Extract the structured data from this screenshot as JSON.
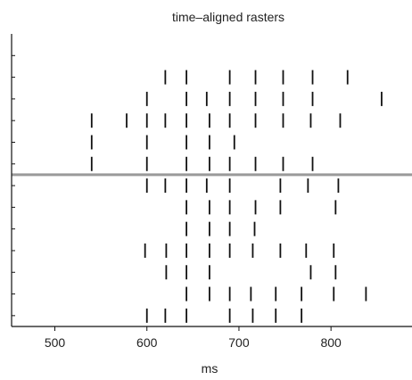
{
  "chart_data": {
    "type": "scatter",
    "subtype": "raster",
    "title": "time–aligned rasters",
    "xlabel": "ms",
    "ylabel": "",
    "xlim": [
      453,
      888
    ],
    "xticks": [
      500,
      600,
      700,
      800
    ],
    "ylim": [
      0.5,
      14
    ],
    "ytick_count": 13,
    "alignment_line_y": 7.5,
    "grid": false,
    "legend": "none",
    "colors": {
      "tick_mark": "#111111",
      "axis": "#111111",
      "alignment_line": "#9a9a9a"
    },
    "trials": [
      [
        600,
        620,
        643,
        690,
        715,
        740,
        768
      ],
      [
        643,
        668,
        690,
        713,
        740,
        768,
        803,
        838
      ],
      [
        621,
        643,
        668,
        778,
        805
      ],
      [
        598,
        621,
        643,
        668,
        690,
        715,
        745,
        773,
        803
      ],
      [
        643,
        668,
        690,
        717
      ],
      [
        643,
        668,
        690,
        718,
        745,
        805
      ],
      [
        600,
        620,
        643,
        665,
        690,
        745,
        775,
        808
      ],
      [
        540,
        600,
        643,
        668,
        690,
        718,
        748,
        780
      ],
      [
        540,
        600,
        643,
        668,
        695
      ],
      [
        540,
        578,
        600,
        620,
        643,
        668,
        690,
        718,
        748,
        778,
        810
      ],
      [
        600,
        643,
        665,
        690,
        718,
        748,
        780,
        855
      ],
      [
        620,
        643,
        690,
        718,
        748,
        780,
        818
      ]
    ]
  }
}
